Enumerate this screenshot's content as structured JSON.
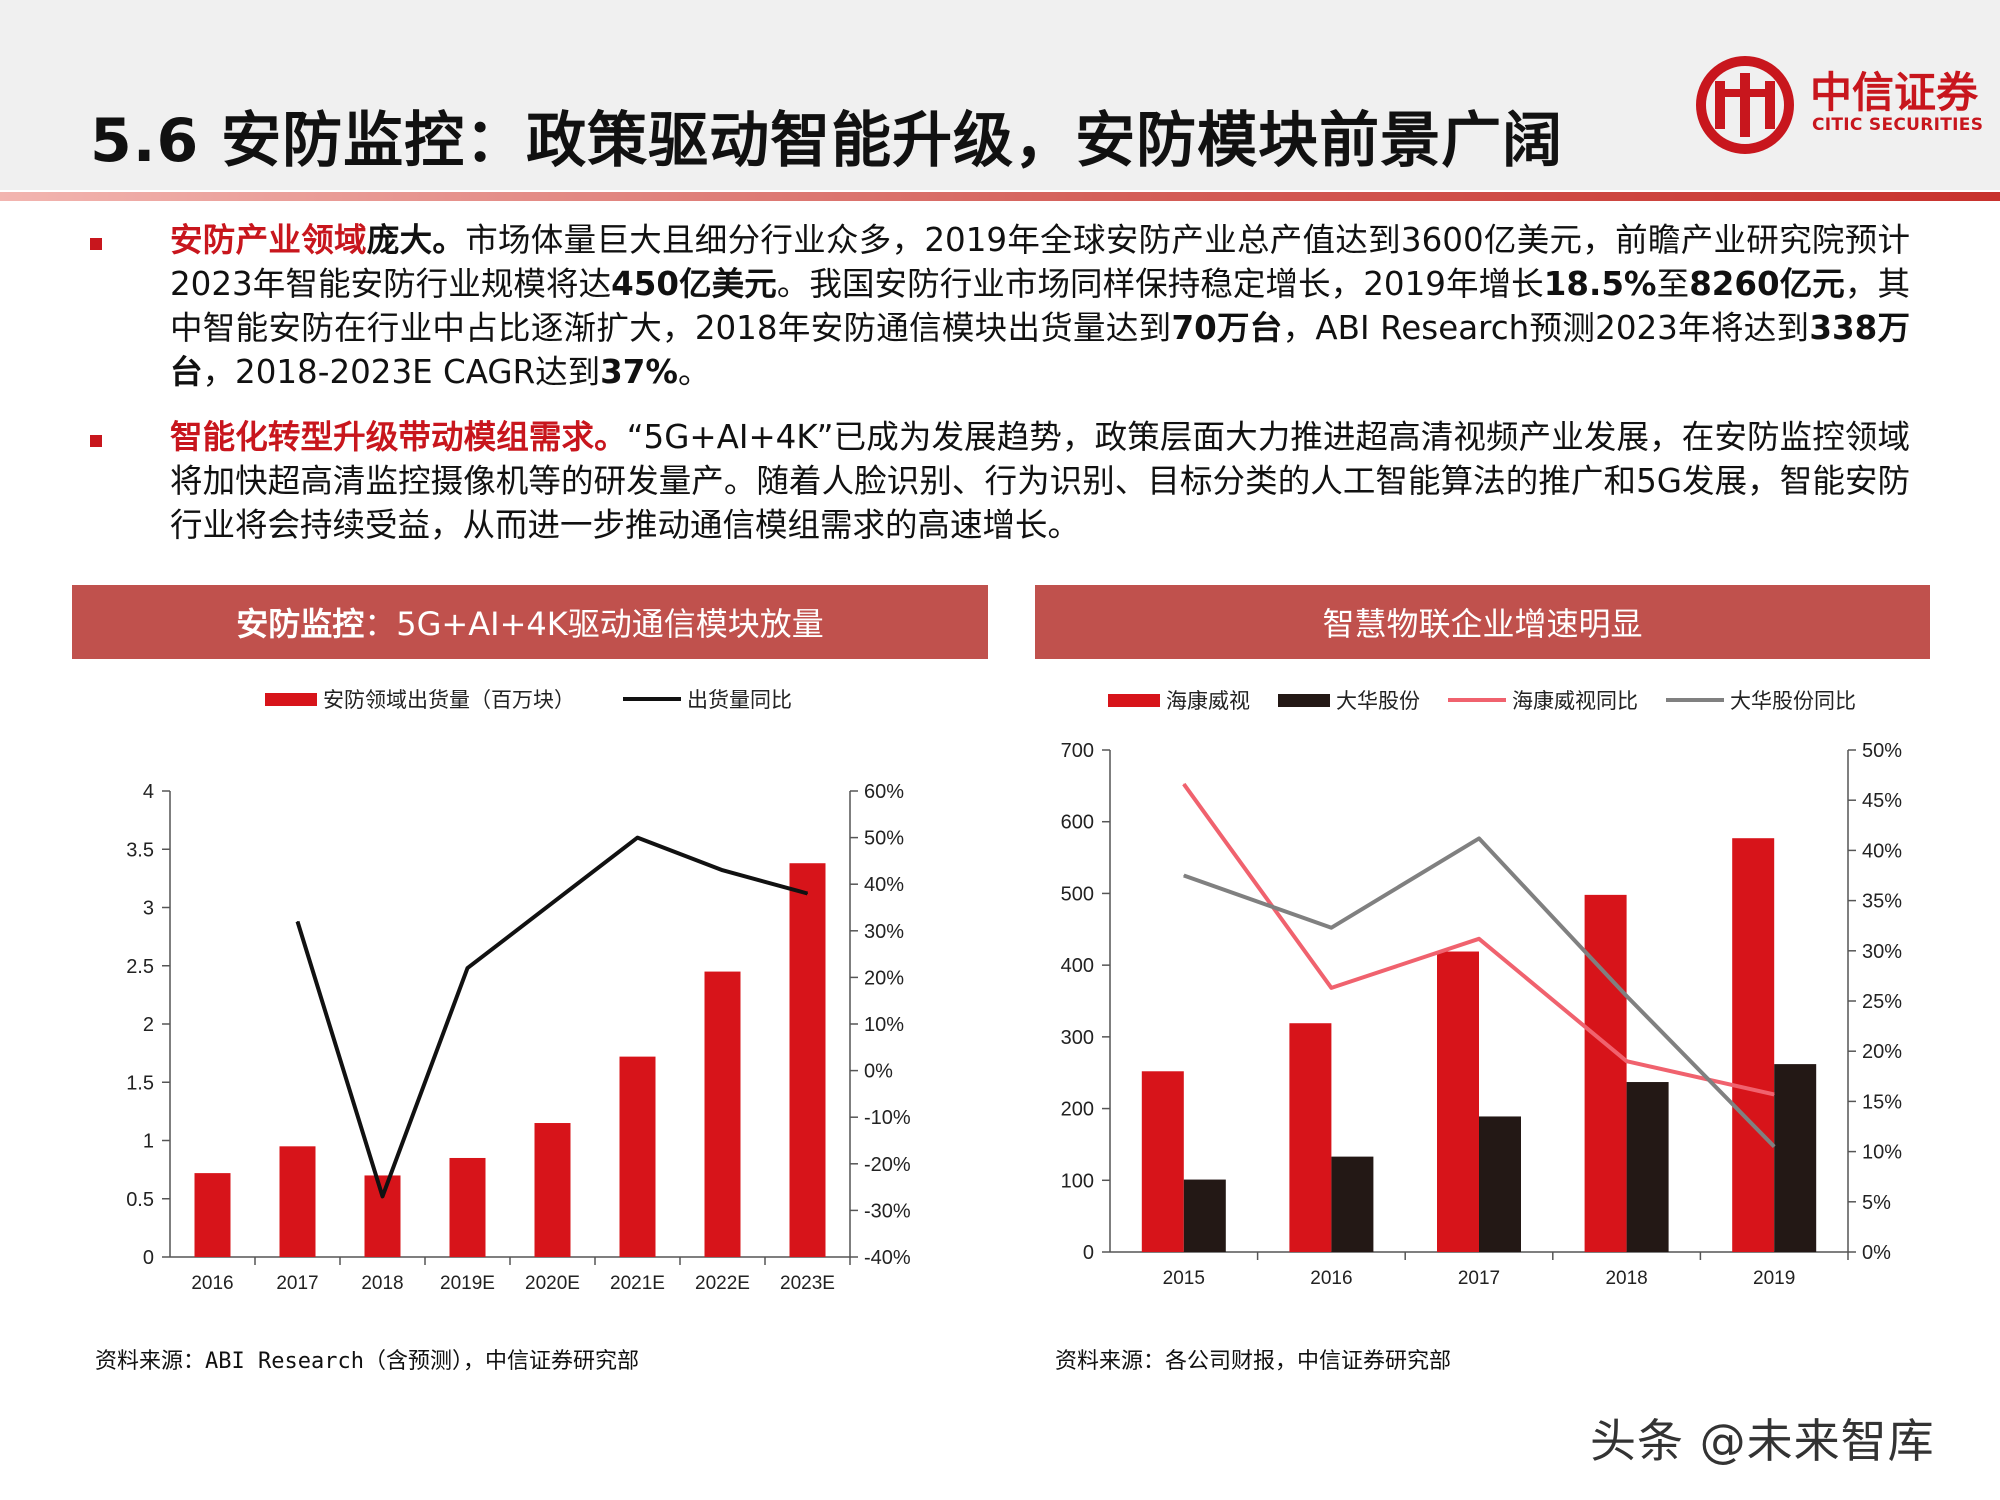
{
  "slide": {
    "title": "5.6 安防监控：政策驱动智能升级，安防模块前景广阔",
    "logo": {
      "cn": "中信证券",
      "en": "CITIC SECURITIES"
    },
    "watermark": "头条 @未来智库"
  },
  "bullets": [
    {
      "lead_red": "安防产业领域",
      "lead_black": "庞大。",
      "parts": [
        {
          "t": "市场体量巨大且细分行业众多，2019年全球安防产业总产值达到3600亿美元，前瞻产业研究院预计2023年智能安防行业规模将达",
          "b": false
        },
        {
          "t": "450亿美元",
          "b": true
        },
        {
          "t": "。我国安防行业市场同样保持稳定增长，2019年增长",
          "b": false
        },
        {
          "t": "18.5%",
          "b": true
        },
        {
          "t": "至",
          "b": false
        },
        {
          "t": "8260亿元",
          "b": true
        },
        {
          "t": "，其中智能安防在行业中占比逐渐扩大，2018年安防通信模块出货量达到",
          "b": false
        },
        {
          "t": "70万台",
          "b": true
        },
        {
          "t": "，ABI Research预测2023年将达到",
          "b": false
        },
        {
          "t": "338万台",
          "b": true
        },
        {
          "t": "，2018-2023E CAGR达到",
          "b": false
        },
        {
          "t": "37%",
          "b": true
        },
        {
          "t": "。",
          "b": false
        }
      ]
    },
    {
      "lead_red": "智能化转型升级带动模组需求。",
      "lead_black": "",
      "parts": [
        {
          "t": "“5G+AI+4K”已成为发展趋势，政策层面大力推进超高清视频产业发展，在安防监控领域将加快超高清监控摄像机等的研发量产。随着人脸识别、行为识别、目标分类的人工智能算法的推广和5G发展，智能安防行业将会持续受益，从而进一步推动通信模组需求的高速增长。",
          "b": false
        }
      ]
    }
  ],
  "left_panel": {
    "header_bold": "安防监控",
    "header_rest": "：5G+AI+4K驱动通信模块放量",
    "source": "资料来源：ABI Research（含预测），中信证券研究部"
  },
  "right_panel": {
    "header": "智慧物联企业增速明显",
    "source": "资料来源：各公司财报，中信证券研究部"
  },
  "chart_data": [
    {
      "type": "bar",
      "categories": [
        "2016",
        "2017",
        "2018",
        "2019E",
        "2020E",
        "2021E",
        "2022E",
        "2023E"
      ],
      "series": [
        {
          "name": "安防领域出货量（百万块）",
          "kind": "bar",
          "axis": "left",
          "color": "#d7141a",
          "values": [
            0.72,
            0.95,
            0.7,
            0.85,
            1.15,
            1.72,
            2.45,
            3.38
          ]
        },
        {
          "name": "出货量同比",
          "kind": "line",
          "axis": "right",
          "color": "#111111",
          "values": [
            null,
            32,
            -27,
            22,
            36,
            50,
            43,
            38
          ]
        }
      ],
      "ylim": [
        0,
        4
      ],
      "yticks": [
        "0",
        "0.5",
        "1",
        "1.5",
        "2",
        "2.5",
        "3",
        "3.5",
        "4"
      ],
      "y2lim": [
        -40,
        60
      ],
      "y2ticks": [
        "-40%",
        "-30%",
        "-20%",
        "-10%",
        "0%",
        "10%",
        "20%",
        "30%",
        "40%",
        "50%",
        "60%"
      ],
      "legend": "top"
    },
    {
      "type": "bar",
      "categories": [
        "2015",
        "2016",
        "2017",
        "2018",
        "2019"
      ],
      "series": [
        {
          "name": "海康威视",
          "kind": "bar",
          "axis": "left",
          "color": "#d7141a",
          "values": [
            252,
            319,
            419,
            498,
            577
          ]
        },
        {
          "name": "大华股份",
          "kind": "bar",
          "axis": "left",
          "color": "#231815",
          "values": [
            101,
            133,
            189,
            237,
            262
          ]
        },
        {
          "name": "海康威视同比",
          "kind": "line",
          "axis": "right",
          "color": "#f0626e",
          "values": [
            46.6,
            26.3,
            31.2,
            19.0,
            15.7
          ]
        },
        {
          "name": "大华股份同比",
          "kind": "line",
          "axis": "right",
          "color": "#808080",
          "values": [
            37.5,
            32.3,
            41.2,
            25.5,
            10.5
          ]
        }
      ],
      "ylim": [
        0,
        700
      ],
      "yticks": [
        "0",
        "100",
        "200",
        "300",
        "400",
        "500",
        "600",
        "700"
      ],
      "y2lim": [
        0,
        50
      ],
      "y2ticks": [
        "0%",
        "5%",
        "10%",
        "15%",
        "20%",
        "25%",
        "30%",
        "35%",
        "40%",
        "45%",
        "50%"
      ],
      "legend": "top"
    }
  ]
}
